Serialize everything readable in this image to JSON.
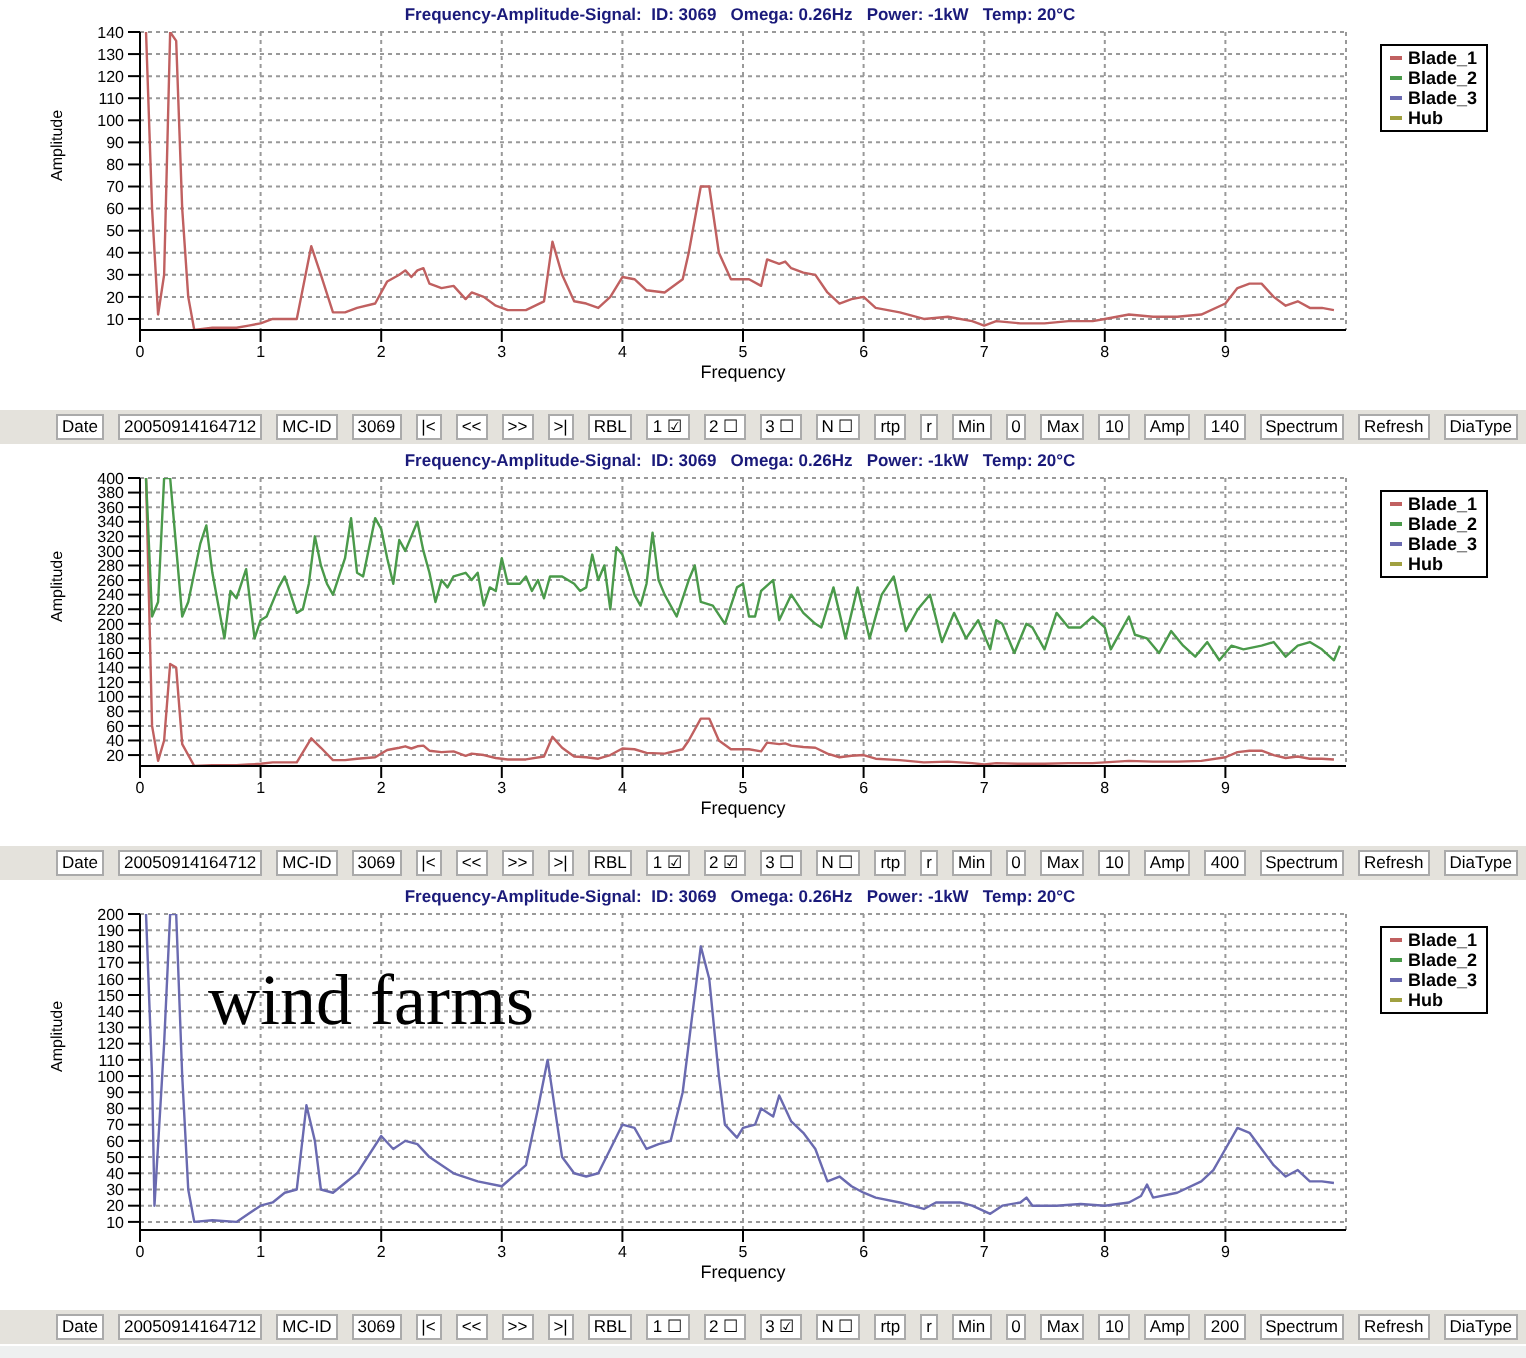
{
  "chart_data": [
    {
      "type": "line",
      "title": "Frequency-Amplitude-Signal:  ID: 3069   Omega: 0.26Hz   Power: -1kW   Temp: 20°C",
      "xlabel": "Frequency",
      "ylabel": "Amplitude",
      "xlim": [
        0,
        10
      ],
      "xticks": [
        0,
        1,
        2,
        3,
        4,
        5,
        6,
        7,
        8,
        9
      ],
      "ylim": [
        5,
        140
      ],
      "yticks": [
        10,
        20,
        30,
        40,
        50,
        60,
        70,
        80,
        90,
        100,
        110,
        120,
        130,
        140
      ],
      "grid": true,
      "legend": "top right",
      "series": [
        {
          "name": "Blade_1",
          "color": "#c06060",
          "x": [
            0.05,
            0.1,
            0.15,
            0.2,
            0.25,
            0.3,
            0.35,
            0.4,
            0.45,
            0.6,
            0.8,
            0.9,
            1.0,
            1.1,
            1.3,
            1.42,
            1.5,
            1.6,
            1.7,
            1.8,
            1.95,
            2.05,
            2.15,
            2.2,
            2.25,
            2.3,
            2.35,
            2.4,
            2.5,
            2.6,
            2.7,
            2.75,
            2.85,
            2.95,
            3.05,
            3.2,
            3.35,
            3.42,
            3.5,
            3.6,
            3.7,
            3.8,
            3.9,
            4.0,
            4.1,
            4.2,
            4.35,
            4.5,
            4.55,
            4.65,
            4.72,
            4.8,
            4.9,
            5.05,
            5.15,
            5.2,
            5.3,
            5.35,
            5.4,
            5.5,
            5.6,
            5.7,
            5.8,
            5.9,
            6.0,
            6.1,
            6.3,
            6.5,
            6.7,
            6.9,
            7.0,
            7.1,
            7.3,
            7.5,
            7.7,
            7.9,
            8.0,
            8.2,
            8.4,
            8.6,
            8.8,
            9.0,
            9.1,
            9.2,
            9.3,
            9.4,
            9.5,
            9.6,
            9.7,
            9.8,
            9.9
          ],
          "values": [
            140,
            60,
            12,
            30,
            140,
            136,
            60,
            20,
            5,
            6,
            6,
            7,
            8,
            10,
            10,
            43,
            30,
            13,
            13,
            15,
            17,
            27,
            30,
            32,
            29,
            32,
            33,
            26,
            24,
            25,
            19,
            22,
            20,
            16,
            14,
            14,
            18,
            45,
            30,
            18,
            17,
            15,
            20,
            29,
            28,
            23,
            22,
            28,
            40,
            70,
            70,
            40,
            28,
            28,
            25,
            37,
            35,
            36,
            33,
            31,
            30,
            22,
            17,
            19,
            20,
            15,
            13,
            10,
            11,
            9,
            7,
            9,
            8,
            8,
            9,
            9,
            10,
            12,
            11,
            11,
            12,
            17,
            24,
            26,
            26,
            20,
            16,
            18,
            15,
            15,
            14
          ]
        },
        {
          "name": "Blade_2",
          "color": "#4a9a4a"
        },
        {
          "name": "Blade_3",
          "color": "#6a6ab0"
        },
        {
          "name": "Hub",
          "color": "#a0a040"
        }
      ],
      "annotations": [
        "Date",
        "20050914164712",
        "MC-ID",
        "3069",
        "|<",
        "<<",
        ">>",
        ">|",
        "RBL",
        "1 ☑",
        "2 ☐",
        "3 ☐",
        "N ☐",
        "rtp",
        "r",
        "Min",
        "0",
        "Max",
        "10",
        "Amp",
        "140",
        "Spectrum",
        "Refresh",
        "DiaType"
      ]
    },
    {
      "type": "line",
      "title": "Frequency-Amplitude-Signal:  ID: 3069   Omega: 0.26Hz   Power: -1kW   Temp: 20°C",
      "xlabel": "Frequency",
      "ylabel": "Amplitude",
      "xlim": [
        0,
        10
      ],
      "xticks": [
        0,
        1,
        2,
        3,
        4,
        5,
        6,
        7,
        8,
        9
      ],
      "ylim": [
        5,
        400
      ],
      "yticks": [
        20,
        40,
        60,
        80,
        100,
        120,
        140,
        160,
        180,
        200,
        220,
        240,
        260,
        280,
        300,
        320,
        340,
        360,
        380,
        400
      ],
      "grid": true,
      "legend": "top right",
      "series": [
        {
          "name": "Blade_1",
          "color": "#c06060",
          "x": [
            0.05,
            0.1,
            0.15,
            0.2,
            0.25,
            0.3,
            0.35,
            0.45,
            0.6,
            0.8,
            0.9,
            1.0,
            1.1,
            1.3,
            1.42,
            1.5,
            1.6,
            1.7,
            1.8,
            1.95,
            2.05,
            2.15,
            2.2,
            2.25,
            2.3,
            2.35,
            2.4,
            2.5,
            2.6,
            2.7,
            2.75,
            2.85,
            2.95,
            3.05,
            3.2,
            3.35,
            3.42,
            3.5,
            3.6,
            3.7,
            3.8,
            3.9,
            4.0,
            4.1,
            4.2,
            4.35,
            4.5,
            4.55,
            4.65,
            4.72,
            4.8,
            4.9,
            5.05,
            5.15,
            5.2,
            5.3,
            5.35,
            5.4,
            5.5,
            5.6,
            5.7,
            5.8,
            5.9,
            6.0,
            6.1,
            6.3,
            6.5,
            6.7,
            6.9,
            7.0,
            7.1,
            7.3,
            7.5,
            7.7,
            7.9,
            8.0,
            8.2,
            8.4,
            8.6,
            8.8,
            9.0,
            9.1,
            9.2,
            9.3,
            9.4,
            9.5,
            9.6,
            9.7,
            9.8,
            9.9
          ],
          "values": [
            400,
            60,
            12,
            40,
            145,
            140,
            35,
            5,
            6,
            6,
            7,
            8,
            10,
            10,
            43,
            30,
            13,
            13,
            15,
            17,
            27,
            30,
            32,
            29,
            32,
            33,
            26,
            24,
            25,
            19,
            22,
            20,
            16,
            14,
            14,
            18,
            45,
            30,
            18,
            17,
            15,
            20,
            29,
            28,
            23,
            22,
            28,
            40,
            70,
            70,
            40,
            28,
            28,
            25,
            37,
            35,
            36,
            33,
            31,
            30,
            22,
            17,
            19,
            20,
            15,
            13,
            10,
            11,
            9,
            7,
            9,
            8,
            8,
            9,
            9,
            10,
            12,
            11,
            11,
            12,
            17,
            24,
            26,
            26,
            20,
            16,
            18,
            15,
            15,
            14
          ]
        },
        {
          "name": "Blade_2",
          "color": "#4a9a4a",
          "x": [
            0.05,
            0.1,
            0.15,
            0.2,
            0.25,
            0.35,
            0.4,
            0.5,
            0.55,
            0.6,
            0.7,
            0.75,
            0.8,
            0.88,
            0.95,
            1.0,
            1.05,
            1.15,
            1.2,
            1.3,
            1.35,
            1.4,
            1.45,
            1.5,
            1.55,
            1.6,
            1.7,
            1.75,
            1.8,
            1.85,
            1.95,
            2.0,
            2.05,
            2.1,
            2.15,
            2.2,
            2.3,
            2.35,
            2.4,
            2.45,
            2.5,
            2.55,
            2.6,
            2.7,
            2.75,
            2.8,
            2.85,
            2.9,
            2.95,
            3.0,
            3.05,
            3.15,
            3.2,
            3.25,
            3.3,
            3.35,
            3.4,
            3.5,
            3.6,
            3.65,
            3.7,
            3.75,
            3.8,
            3.85,
            3.9,
            3.95,
            4.0,
            4.1,
            4.15,
            4.2,
            4.25,
            4.3,
            4.35,
            4.45,
            4.55,
            4.6,
            4.65,
            4.75,
            4.85,
            4.95,
            5.0,
            5.05,
            5.1,
            5.15,
            5.25,
            5.3,
            5.4,
            5.5,
            5.6,
            5.65,
            5.75,
            5.85,
            5.95,
            6.05,
            6.15,
            6.25,
            6.35,
            6.45,
            6.55,
            6.65,
            6.75,
            6.85,
            6.95,
            7.05,
            7.1,
            7.15,
            7.25,
            7.35,
            7.4,
            7.5,
            7.6,
            7.7,
            7.8,
            7.9,
            8.0,
            8.05,
            8.1,
            8.2,
            8.25,
            8.35,
            8.45,
            8.55,
            8.65,
            8.75,
            8.85,
            8.95,
            9.05,
            9.15,
            9.3,
            9.4,
            9.5,
            9.6,
            9.7,
            9.8,
            9.9,
            9.95
          ],
          "values": [
            400,
            210,
            230,
            400,
            400,
            210,
            230,
            310,
            335,
            270,
            180,
            245,
            235,
            275,
            180,
            205,
            210,
            250,
            265,
            215,
            220,
            255,
            320,
            280,
            255,
            240,
            290,
            345,
            270,
            265,
            345,
            330,
            290,
            255,
            315,
            300,
            340,
            300,
            270,
            230,
            260,
            250,
            265,
            270,
            260,
            270,
            225,
            250,
            245,
            290,
            255,
            255,
            265,
            245,
            260,
            235,
            265,
            265,
            255,
            245,
            250,
            295,
            260,
            280,
            220,
            305,
            295,
            240,
            225,
            255,
            325,
            260,
            240,
            210,
            260,
            280,
            230,
            225,
            200,
            250,
            255,
            210,
            210,
            245,
            260,
            205,
            240,
            215,
            200,
            195,
            250,
            180,
            250,
            180,
            240,
            265,
            190,
            220,
            240,
            175,
            215,
            180,
            205,
            165,
            205,
            200,
            160,
            200,
            195,
            165,
            215,
            195,
            195,
            210,
            195,
            165,
            180,
            210,
            185,
            180,
            160,
            190,
            170,
            155,
            175,
            150,
            170,
            165,
            170,
            175,
            155,
            170,
            175,
            165,
            150,
            170
          ]
        },
        {
          "name": "Blade_3",
          "color": "#6a6ab0"
        },
        {
          "name": "Hub",
          "color": "#a0a040"
        }
      ],
      "annotations": [
        "Date",
        "20050914164712",
        "MC-ID",
        "3069",
        "|<",
        "<<",
        ">>",
        ">|",
        "RBL",
        "1 ☑",
        "2 ☑",
        "3 ☐",
        "N ☐",
        "rtp",
        "r",
        "Min",
        "0",
        "Max",
        "10",
        "Amp",
        "400",
        "Spectrum",
        "Refresh",
        "DiaType"
      ]
    },
    {
      "type": "line",
      "title": "Frequency-Amplitude-Signal:  ID: 3069   Omega: 0.26Hz   Power: -1kW   Temp: 20°C",
      "xlabel": "Frequency",
      "ylabel": "Amplitude",
      "xlim": [
        0,
        10
      ],
      "xticks": [
        0,
        1,
        2,
        3,
        4,
        5,
        6,
        7,
        8,
        9
      ],
      "ylim": [
        5,
        200
      ],
      "yticks": [
        10,
        20,
        30,
        40,
        50,
        60,
        70,
        80,
        90,
        100,
        110,
        120,
        130,
        140,
        150,
        160,
        170,
        180,
        190,
        200
      ],
      "grid": true,
      "legend": "top right",
      "series": [
        {
          "name": "Blade_1",
          "color": "#c06060"
        },
        {
          "name": "Blade_2",
          "color": "#4a9a4a"
        },
        {
          "name": "Blade_3",
          "color": "#6a6ab0",
          "x": [
            0.05,
            0.1,
            0.12,
            0.2,
            0.25,
            0.3,
            0.35,
            0.4,
            0.45,
            0.6,
            0.8,
            0.9,
            1.0,
            1.1,
            1.2,
            1.3,
            1.38,
            1.45,
            1.5,
            1.6,
            1.8,
            2.0,
            2.1,
            2.2,
            2.3,
            2.4,
            2.6,
            2.8,
            3.0,
            3.2,
            3.3,
            3.38,
            3.45,
            3.5,
            3.6,
            3.7,
            3.8,
            3.9,
            4.0,
            4.1,
            4.2,
            4.3,
            4.4,
            4.5,
            4.6,
            4.65,
            4.72,
            4.8,
            4.85,
            4.95,
            5.0,
            5.1,
            5.15,
            5.25,
            5.3,
            5.4,
            5.5,
            5.6,
            5.7,
            5.8,
            5.9,
            6.0,
            6.1,
            6.3,
            6.5,
            6.6,
            6.8,
            6.9,
            7.05,
            7.15,
            7.3,
            7.35,
            7.4,
            7.6,
            7.8,
            8.0,
            8.2,
            8.3,
            8.35,
            8.4,
            8.6,
            8.8,
            8.9,
            9.0,
            9.1,
            9.2,
            9.3,
            9.4,
            9.5,
            9.6,
            9.7,
            9.8,
            9.9
          ],
          "values": [
            200,
            100,
            20,
            120,
            200,
            200,
            100,
            30,
            10,
            11,
            10,
            15,
            20,
            22,
            28,
            30,
            82,
            60,
            30,
            28,
            40,
            63,
            55,
            60,
            58,
            50,
            40,
            35,
            32,
            45,
            80,
            110,
            75,
            50,
            40,
            38,
            40,
            55,
            70,
            68,
            55,
            58,
            60,
            90,
            150,
            180,
            160,
            100,
            70,
            62,
            68,
            70,
            80,
            75,
            88,
            72,
            65,
            55,
            35,
            38,
            32,
            28,
            25,
            22,
            18,
            22,
            22,
            20,
            15,
            20,
            22,
            25,
            20,
            20,
            21,
            20,
            22,
            26,
            33,
            25,
            28,
            35,
            42,
            55,
            68,
            65,
            55,
            45,
            38,
            42,
            35,
            35,
            34
          ]
        },
        {
          "name": "Hub",
          "color": "#a0a040"
        }
      ],
      "annotations": [
        "Date",
        "20050914164712",
        "MC-ID",
        "3069",
        "|<",
        "<<",
        ">>",
        ">|",
        "RBL",
        "1 ☐",
        "2 ☐",
        "3 ☑",
        "N ☐",
        "rtp",
        "r",
        "Min",
        "0",
        "Max",
        "10",
        "Amp",
        "200",
        "Spectrum",
        "Refresh",
        "DiaType",
        "wind farms"
      ]
    }
  ]
}
